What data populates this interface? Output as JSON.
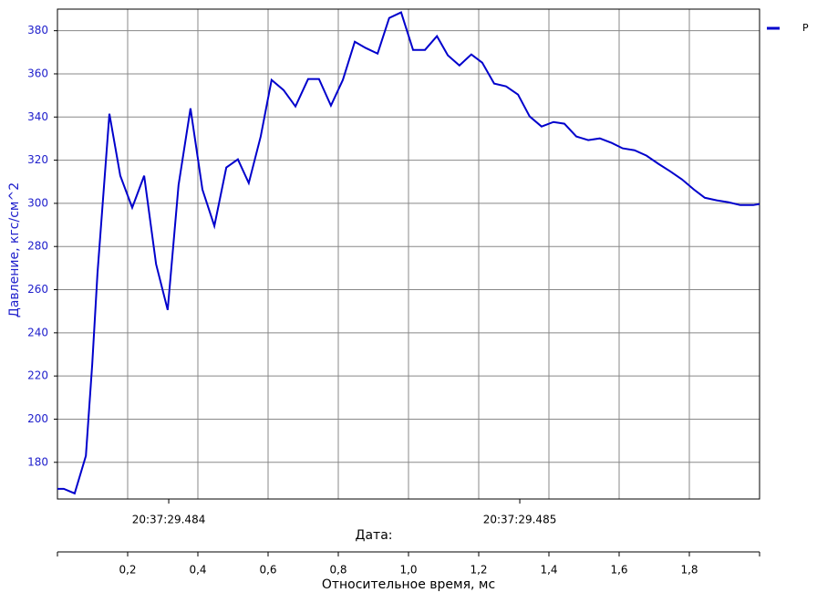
{
  "chart_data": {
    "type": "line",
    "xlabel": "Относительное время, мс",
    "ylabel": "Давление, кгс/см^2",
    "x2label": "Дата:",
    "x": [
      0,
      0.018,
      0.049,
      0.081,
      0.099,
      0.114,
      0.148,
      0.179,
      0.213,
      0.247,
      0.281,
      0.314,
      0.345,
      0.379,
      0.413,
      0.447,
      0.481,
      0.514,
      0.545,
      0.579,
      0.61,
      0.644,
      0.678,
      0.714,
      0.745,
      0.779,
      0.813,
      0.847,
      0.878,
      0.912,
      0.945,
      0.979,
      1.013,
      1.047,
      1.081,
      1.112,
      1.145,
      1.179,
      1.21,
      1.244,
      1.278,
      1.312,
      1.345,
      1.379,
      1.413,
      1.444,
      1.478,
      1.512,
      1.545,
      1.579,
      1.61,
      1.644,
      1.678,
      1.712,
      1.745,
      1.779,
      1.813,
      1.844,
      1.878,
      1.912,
      1.945,
      1.982,
      2.0
    ],
    "series": [
      {
        "name": "P",
        "color": "#0000cc",
        "values": [
          167.7,
          167.7,
          165.6,
          183,
          225.2,
          267.5,
          341.5,
          312.8,
          298,
          312.8,
          271.8,
          250.6,
          308.5,
          344,
          306.4,
          289.5,
          316.6,
          320.4,
          309.4,
          331,
          357.2,
          352.5,
          344.9,
          357.6,
          357.6,
          345.3,
          357.2,
          374.9,
          372,
          369.4,
          385.9,
          388.5,
          371.1,
          371.1,
          377.5,
          368.6,
          363.9,
          369,
          365.2,
          355.5,
          354.2,
          350.4,
          340.3,
          335.6,
          337.7,
          336.9,
          331,
          329.3,
          330.1,
          328,
          325.5,
          324.6,
          322.1,
          318.3,
          314.9,
          311.1,
          306.4,
          302.6,
          301.4,
          300.5,
          299.2,
          299.2,
          299.7
        ]
      }
    ],
    "xlim": [
      0,
      2
    ],
    "xticks": [
      {
        "value": 0.2,
        "label": "0,2"
      },
      {
        "value": 0.4,
        "label": "0,4"
      },
      {
        "value": 0.6,
        "label": "0,6"
      },
      {
        "value": 0.8,
        "label": "0,8"
      },
      {
        "value": 1.0,
        "label": "1,0"
      },
      {
        "value": 1.2,
        "label": "1,2"
      },
      {
        "value": 1.4,
        "label": "1,4"
      },
      {
        "value": 1.6,
        "label": "1,6"
      },
      {
        "value": 1.8,
        "label": "1,8"
      }
    ],
    "x2lim": [
      483.683,
      485.683
    ],
    "x2ticks": [
      {
        "value": 484,
        "label": "20:37:29.484"
      },
      {
        "value": 485,
        "label": "20:37:29.485"
      }
    ],
    "ylim": [
      163,
      390
    ],
    "yticks": [
      180,
      200,
      220,
      240,
      260,
      280,
      300,
      320,
      340,
      360,
      380
    ],
    "grid": true,
    "legend": "upper right"
  }
}
